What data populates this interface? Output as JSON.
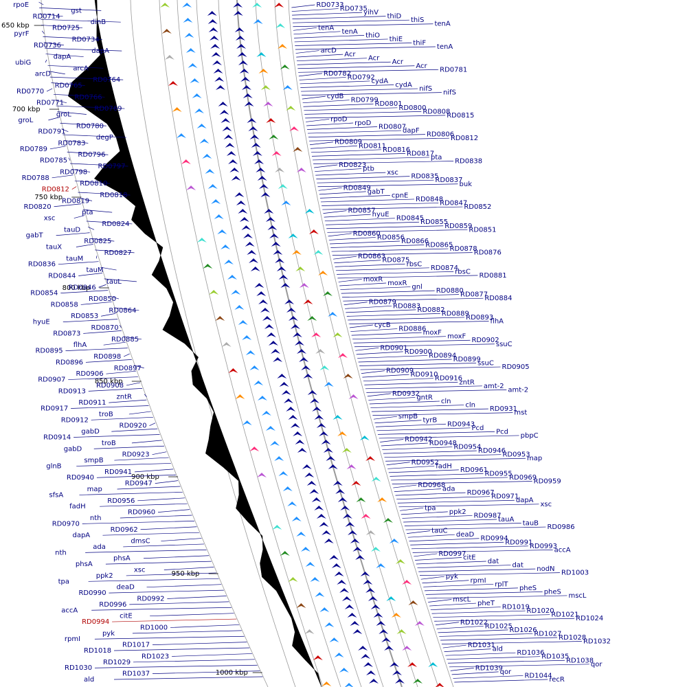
{
  "colors": {
    "background": "#ffffff",
    "label": "#000080",
    "highlight": "#b00000",
    "guide": "#999999",
    "gc_plot": "#000000",
    "feature_main": "#00008b",
    "feature_palette": [
      "#00bcd4",
      "#ff2d7a",
      "#ff8c00",
      "#aaaaaa",
      "#9acd32",
      "#40e0d0",
      "#ba55d3",
      "#1e90ff",
      "#cc0000",
      "#8b4513",
      "#228b22"
    ]
  },
  "kbp_ticks": [
    {
      "text": "650 kbp"
    },
    {
      "text": "700 kbp"
    },
    {
      "text": "750 kbp"
    },
    {
      "text": "800 kbp"
    },
    {
      "text": "850 kbp"
    },
    {
      "text": "900 kbp"
    },
    {
      "text": "950 kbp"
    },
    {
      "text": "1000 kbp"
    }
  ],
  "labels_left": [
    {
      "text": "rpoE"
    },
    {
      "text": "gst"
    },
    {
      "text": "RD0714"
    },
    {
      "text": "dinB"
    },
    {
      "text": "RD0725"
    },
    {
      "text": "pyrF"
    },
    {
      "text": "RD0734"
    },
    {
      "text": "RD0736"
    },
    {
      "text": "dapA"
    },
    {
      "text": "dapA"
    },
    {
      "text": "ubiG"
    },
    {
      "text": "arcA"
    },
    {
      "text": "arcD"
    },
    {
      "text": "RD0764"
    },
    {
      "text": "RD0765"
    },
    {
      "text": "RD0770"
    },
    {
      "text": "RD0766"
    },
    {
      "text": "RD0771"
    },
    {
      "text": "RD0769"
    },
    {
      "text": "groL"
    },
    {
      "text": "groL"
    },
    {
      "text": "RD0780"
    },
    {
      "text": "RD0791"
    },
    {
      "text": "degP"
    },
    {
      "text": "RD0783"
    },
    {
      "text": "RD0789"
    },
    {
      "text": "RD0796"
    },
    {
      "text": "RD0785"
    },
    {
      "text": "RD0797"
    },
    {
      "text": "RD0798"
    },
    {
      "text": "RD0788"
    },
    {
      "text": "RD0810"
    },
    {
      "text": "RD0812",
      "highlight": true
    },
    {
      "text": "RD0818"
    },
    {
      "text": "RD0819"
    },
    {
      "text": "RD0820"
    },
    {
      "text": "pta"
    },
    {
      "text": "xsc"
    },
    {
      "text": "RD0824"
    },
    {
      "text": "tauD"
    },
    {
      "text": "gabT"
    },
    {
      "text": "RD0825"
    },
    {
      "text": "tauX"
    },
    {
      "text": "RD0827"
    },
    {
      "text": "tauM"
    },
    {
      "text": "RD0836"
    },
    {
      "text": "tauM"
    },
    {
      "text": "RD0844"
    },
    {
      "text": "tauL"
    },
    {
      "text": "RD0846"
    },
    {
      "text": "RD0854"
    },
    {
      "text": "RD0850"
    },
    {
      "text": "RD0858"
    },
    {
      "text": "RD0864"
    },
    {
      "text": "RD0853"
    },
    {
      "text": "hyuE"
    },
    {
      "text": "RD0870"
    },
    {
      "text": "RD0873"
    },
    {
      "text": "RD0885"
    },
    {
      "text": "flhA"
    },
    {
      "text": "RD0895"
    },
    {
      "text": "RD0898"
    },
    {
      "text": "RD0896"
    },
    {
      "text": "RD0897"
    },
    {
      "text": "RD0906"
    },
    {
      "text": "RD0907"
    },
    {
      "text": "RD0908"
    },
    {
      "text": "RD0913"
    },
    {
      "text": "zntR"
    },
    {
      "text": "RD0911"
    },
    {
      "text": "RD0917"
    },
    {
      "text": "troB"
    },
    {
      "text": "RD0912"
    },
    {
      "text": "RD0920"
    },
    {
      "text": "gabD"
    },
    {
      "text": "RD0914"
    },
    {
      "text": "troB"
    },
    {
      "text": "gabD"
    },
    {
      "text": "RD0923"
    },
    {
      "text": "smpB"
    },
    {
      "text": "glnB"
    },
    {
      "text": "RD0941"
    },
    {
      "text": "RD0940"
    },
    {
      "text": "RD0947"
    },
    {
      "text": "map"
    },
    {
      "text": "sfsA"
    },
    {
      "text": "RD0956"
    },
    {
      "text": "fadH"
    },
    {
      "text": "RD0960"
    },
    {
      "text": "nth"
    },
    {
      "text": "RD0970"
    },
    {
      "text": "RD0962"
    },
    {
      "text": "dapA"
    },
    {
      "text": "dmsC"
    },
    {
      "text": "ada"
    },
    {
      "text": "nth"
    },
    {
      "text": "phsA"
    },
    {
      "text": "phsA"
    },
    {
      "text": "xsc"
    },
    {
      "text": "ppk2"
    },
    {
      "text": "tpa"
    },
    {
      "text": "deaD"
    },
    {
      "text": "RD0990"
    },
    {
      "text": "RD0992"
    },
    {
      "text": "RD0996"
    },
    {
      "text": "accA"
    },
    {
      "text": "citE"
    },
    {
      "text": "RD0994",
      "highlight": true
    },
    {
      "text": "RD1000"
    },
    {
      "text": "pyk"
    },
    {
      "text": "rpmI"
    },
    {
      "text": "RD1017"
    },
    {
      "text": "RD1018"
    },
    {
      "text": "RD1023"
    },
    {
      "text": "RD1029"
    },
    {
      "text": "RD1030"
    },
    {
      "text": "RD1037"
    },
    {
      "text": "ald"
    }
  ],
  "labels_right": [
    {
      "text": "RD0733"
    },
    {
      "text": "RD0735"
    },
    {
      "text": "yihV"
    },
    {
      "text": "thiD"
    },
    {
      "text": "thiS"
    },
    {
      "text": "tenA"
    },
    {
      "text": "tenA"
    },
    {
      "text": "tenA"
    },
    {
      "text": "thiO"
    },
    {
      "text": "thiE"
    },
    {
      "text": "thiF"
    },
    {
      "text": "tenA"
    },
    {
      "text": "arcD"
    },
    {
      "text": "Acr"
    },
    {
      "text": "Acr"
    },
    {
      "text": "Acr"
    },
    {
      "text": "Acr"
    },
    {
      "text": "RD0781"
    },
    {
      "text": "RD0782"
    },
    {
      "text": "RD0792"
    },
    {
      "text": "cydA"
    },
    {
      "text": "cydA"
    },
    {
      "text": "nifS"
    },
    {
      "text": "nifS"
    },
    {
      "text": "cydB"
    },
    {
      "text": "RD0799"
    },
    {
      "text": "RD0801"
    },
    {
      "text": "RD0800"
    },
    {
      "text": "RD0808"
    },
    {
      "text": "RD0815"
    },
    {
      "text": "rpoD"
    },
    {
      "text": "rpoD"
    },
    {
      "text": "RD0807"
    },
    {
      "text": "dapF"
    },
    {
      "text": "RD0806"
    },
    {
      "text": "RD0812"
    },
    {
      "text": "RD0809"
    },
    {
      "text": "RD0811"
    },
    {
      "text": "RD0816"
    },
    {
      "text": "RD0817"
    },
    {
      "text": "pta"
    },
    {
      "text": "RD0838"
    },
    {
      "text": "RD0823"
    },
    {
      "text": "ptb"
    },
    {
      "text": "xsc"
    },
    {
      "text": "RD0835"
    },
    {
      "text": "RD0837"
    },
    {
      "text": "buk"
    },
    {
      "text": "RD0849"
    },
    {
      "text": "gabT"
    },
    {
      "text": "cpnE"
    },
    {
      "text": "RD0848"
    },
    {
      "text": "RD0847"
    },
    {
      "text": "RD0852"
    },
    {
      "text": "RD0857"
    },
    {
      "text": "hyuE"
    },
    {
      "text": "RD0845"
    },
    {
      "text": "RD0855"
    },
    {
      "text": "RD0859"
    },
    {
      "text": "RD0851"
    },
    {
      "text": "RD0860"
    },
    {
      "text": "RD0856"
    },
    {
      "text": "RD0866"
    },
    {
      "text": "RD0865"
    },
    {
      "text": "RD0878"
    },
    {
      "text": "RD0876"
    },
    {
      "text": "RD0863"
    },
    {
      "text": "RD0875"
    },
    {
      "text": "rbsC"
    },
    {
      "text": "RD0874"
    },
    {
      "text": "rbsC"
    },
    {
      "text": "RD0881"
    },
    {
      "text": "moxR"
    },
    {
      "text": "moxR"
    },
    {
      "text": "gnl"
    },
    {
      "text": "RD0880"
    },
    {
      "text": "RD0877"
    },
    {
      "text": "RD0884"
    },
    {
      "text": "RD0879"
    },
    {
      "text": "RD0883"
    },
    {
      "text": "RD0882"
    },
    {
      "text": "RD0889"
    },
    {
      "text": "RD0893"
    },
    {
      "text": "flhA"
    },
    {
      "text": "cycB"
    },
    {
      "text": "RD0886"
    },
    {
      "text": "moxF"
    },
    {
      "text": "moxF"
    },
    {
      "text": "RD0902"
    },
    {
      "text": "ssuC"
    },
    {
      "text": "RD0901"
    },
    {
      "text": "RD0900"
    },
    {
      "text": "RD0894"
    },
    {
      "text": "RD0899"
    },
    {
      "text": "ssuC"
    },
    {
      "text": "RD0905"
    },
    {
      "text": "RD0909"
    },
    {
      "text": "RD0910"
    },
    {
      "text": "RD0916"
    },
    {
      "text": "zntR"
    },
    {
      "text": "amt-2"
    },
    {
      "text": "amt-2"
    },
    {
      "text": "RD0932"
    },
    {
      "text": "gntR"
    },
    {
      "text": "cln"
    },
    {
      "text": "cln"
    },
    {
      "text": "RD0931"
    },
    {
      "text": "mst"
    },
    {
      "text": "smpB"
    },
    {
      "text": "tyrB"
    },
    {
      "text": "RD0943"
    },
    {
      "text": "Pcd"
    },
    {
      "text": "Pcd"
    },
    {
      "text": "pbpC"
    },
    {
      "text": "RD0942"
    },
    {
      "text": "RD0948"
    },
    {
      "text": "RD0954"
    },
    {
      "text": "RD0946"
    },
    {
      "text": "RD0953"
    },
    {
      "text": "map"
    },
    {
      "text": "RD0952"
    },
    {
      "text": "fadH"
    },
    {
      "text": "RD0961"
    },
    {
      "text": "RD0955"
    },
    {
      "text": "RD0969"
    },
    {
      "text": "RD0959"
    },
    {
      "text": "RD0968"
    },
    {
      "text": "ada"
    },
    {
      "text": "RD0967"
    },
    {
      "text": "RD0971"
    },
    {
      "text": "dapA"
    },
    {
      "text": "xsc"
    },
    {
      "text": "tpa"
    },
    {
      "text": "ppk2"
    },
    {
      "text": "RD0987"
    },
    {
      "text": "tauA"
    },
    {
      "text": "tauB"
    },
    {
      "text": "RD0986"
    },
    {
      "text": "tauC"
    },
    {
      "text": "deaD"
    },
    {
      "text": "RD0994"
    },
    {
      "text": "RD0991"
    },
    {
      "text": "RD0993"
    },
    {
      "text": "accA"
    },
    {
      "text": "RD0997"
    },
    {
      "text": "citE"
    },
    {
      "text": "dat"
    },
    {
      "text": "dat"
    },
    {
      "text": "nodN"
    },
    {
      "text": "RD1003"
    },
    {
      "text": "pyk"
    },
    {
      "text": "rpmI"
    },
    {
      "text": "rplT"
    },
    {
      "text": "pheS"
    },
    {
      "text": "pheS"
    },
    {
      "text": "mscL"
    },
    {
      "text": "mscL"
    },
    {
      "text": "pheT"
    },
    {
      "text": "RD1019"
    },
    {
      "text": "RD1020"
    },
    {
      "text": "RD1021"
    },
    {
      "text": "RD1024"
    },
    {
      "text": "RD1022"
    },
    {
      "text": "RD1025"
    },
    {
      "text": "RD1026"
    },
    {
      "text": "RD1027"
    },
    {
      "text": "RD1028"
    },
    {
      "text": "RD1032"
    },
    {
      "text": "RD1031"
    },
    {
      "text": "ald"
    },
    {
      "text": "RD1036"
    },
    {
      "text": "RD1035"
    },
    {
      "text": "RD1038"
    },
    {
      "text": "qor"
    },
    {
      "text": "RD1039"
    },
    {
      "text": "qor"
    },
    {
      "text": "RD1044"
    },
    {
      "text": "recR"
    }
  ]
}
